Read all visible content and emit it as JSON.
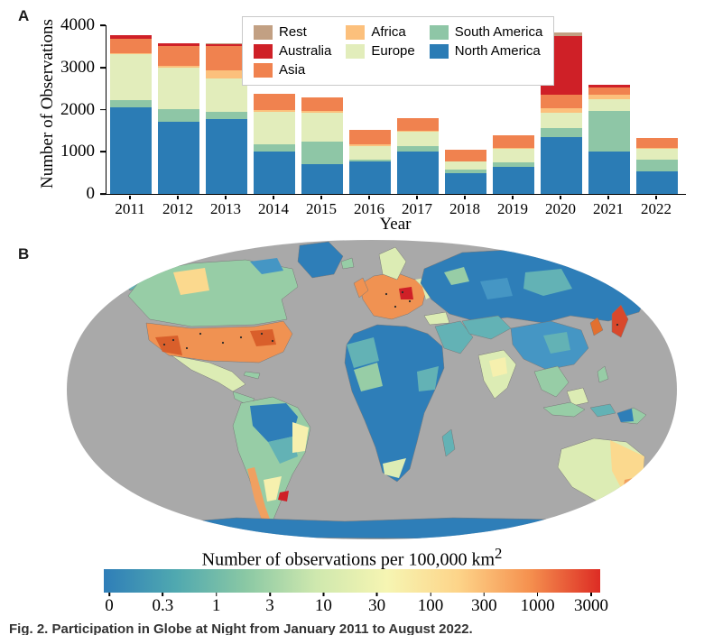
{
  "panel_a": {
    "label": "A",
    "legend_columns": [
      [
        "Rest",
        "Australia",
        "Asia"
      ],
      [
        "Africa",
        "Europe"
      ],
      [
        "South America",
        "North America"
      ]
    ]
  },
  "chart_data": {
    "type": "bar",
    "stacked": true,
    "title": "",
    "xlabel": "Year",
    "ylabel": "Number of Observations",
    "ylim": [
      0,
      4000
    ],
    "yticks": [
      0,
      1000,
      2000,
      3000,
      4000
    ],
    "grid": false,
    "legend_position": "top-right",
    "categories": [
      "2011",
      "2012",
      "2013",
      "2014",
      "2015",
      "2016",
      "2017",
      "2018",
      "2019",
      "2020",
      "2021",
      "2022"
    ],
    "series": [
      {
        "name": "Rest",
        "color": "#c2a083",
        "values": [
          10,
          10,
          10,
          0,
          0,
          0,
          0,
          0,
          0,
          90,
          20,
          0
        ]
      },
      {
        "name": "Australia",
        "color": "#cf2027",
        "values": [
          70,
          60,
          60,
          0,
          0,
          0,
          0,
          0,
          0,
          1390,
          50,
          0
        ]
      },
      {
        "name": "Asia",
        "color": "#f0824f",
        "values": [
          350,
          470,
          570,
          390,
          320,
          340,
          290,
          270,
          300,
          320,
          170,
          220
        ]
      },
      {
        "name": "Africa",
        "color": "#fcc07c",
        "values": [
          20,
          50,
          190,
          50,
          30,
          30,
          30,
          20,
          20,
          110,
          110,
          30
        ]
      },
      {
        "name": "Europe",
        "color": "#e2edbb",
        "values": [
          1100,
          980,
          790,
          760,
          680,
          330,
          330,
          190,
          330,
          360,
          290,
          250
        ]
      },
      {
        "name": "South America",
        "color": "#8ec6a6",
        "values": [
          170,
          290,
          180,
          180,
          540,
          50,
          140,
          70,
          100,
          230,
          960,
          280
        ]
      },
      {
        "name": "North America",
        "color": "#2b7cb5",
        "values": [
          2050,
          1720,
          1770,
          1000,
          710,
          760,
          1000,
          500,
          650,
          1340,
          1000,
          540
        ]
      }
    ]
  },
  "panel_b": {
    "label": "B",
    "colorbar": {
      "title_main": "Number of observations per 100,000 km",
      "title_sup": "2",
      "ticks": [
        "0",
        "0.3",
        "1",
        "3",
        "10",
        "30",
        "100",
        "300",
        "1000",
        "3000"
      ],
      "gradient_stops": [
        "#2f7eb8",
        "#4fa8b0",
        "#8ac8a4",
        "#cfe8ae",
        "#f6f5b2",
        "#fdd489",
        "#f5914f",
        "#dd2c24"
      ]
    },
    "map": {
      "palette": {
        "ocean": "#a9a9a9",
        "blue": "#2e7eb8",
        "blue2": "#4596c4",
        "teal": "#63b2b5",
        "green": "#97cda6",
        "pale_green": "#dcecb4",
        "pale_yellow": "#f6f0ae",
        "sand": "#fbd98e",
        "orange": "#f09252",
        "orange2": "#f0a060",
        "dark_orange": "#d95f2b",
        "deep_orange": "#e2702f",
        "red_orange": "#d9482b",
        "red": "#cf2027",
        "speckle": "#2a2a2a"
      }
    }
  },
  "caption": {
    "text": "Fig. 2. Participation in Globe at Night from January 2011 to August 2022."
  }
}
